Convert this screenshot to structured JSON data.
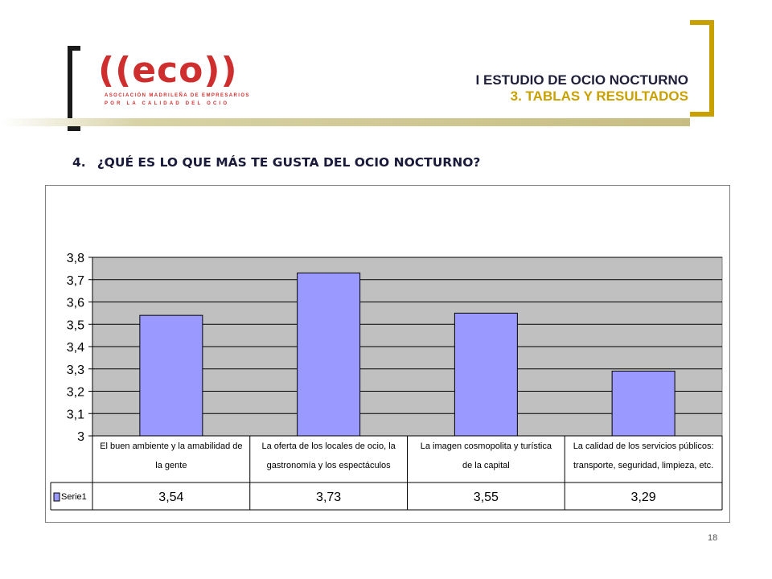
{
  "header": {
    "title": "I ESTUDIO DE OCIO NOCTURNO",
    "subtitle": "3. TABLAS Y RESULTADOS"
  },
  "logo": {
    "main": "((eco))",
    "line1": "ASOCIACIÓN MADRILEÑA DE EMPRESARIOS",
    "line2": "POR LA CALIDAD DEL OCIO"
  },
  "question": {
    "number": "4.",
    "text": "¿QUÉ ES LO QUE MÁS TE GUSTA DEL OCIO NOCTURNO?"
  },
  "colors": {
    "bar": "#9999ff",
    "plot_bg": "#c0c0c0",
    "accent_gold": "#c8a000"
  },
  "chart_data": {
    "type": "bar",
    "categories": [
      [
        "El buen ambiente y la amabilidad de",
        "la gente"
      ],
      [
        "La oferta de los locales de ocio, la",
        "gastronomía y los espectáculos"
      ],
      [
        "La imagen cosmopolita y turística",
        "de la capital"
      ],
      [
        "La calidad de los servicios públicos:",
        "transporte, seguridad, limpieza, etc."
      ]
    ],
    "series": [
      {
        "name": "Serie1",
        "values": [
          3.54,
          3.73,
          3.55,
          3.29
        ],
        "value_labels": [
          "3,54",
          "3,73",
          "3,55",
          "3,29"
        ]
      }
    ],
    "ylim": [
      3,
      3.8
    ],
    "yticks": [
      "3",
      "3,1",
      "3,2",
      "3,3",
      "3,4",
      "3,5",
      "3,6",
      "3,7",
      "3,8"
    ],
    "grid": true,
    "data_table": true,
    "legend": "data-table-left"
  },
  "page_number": "18"
}
